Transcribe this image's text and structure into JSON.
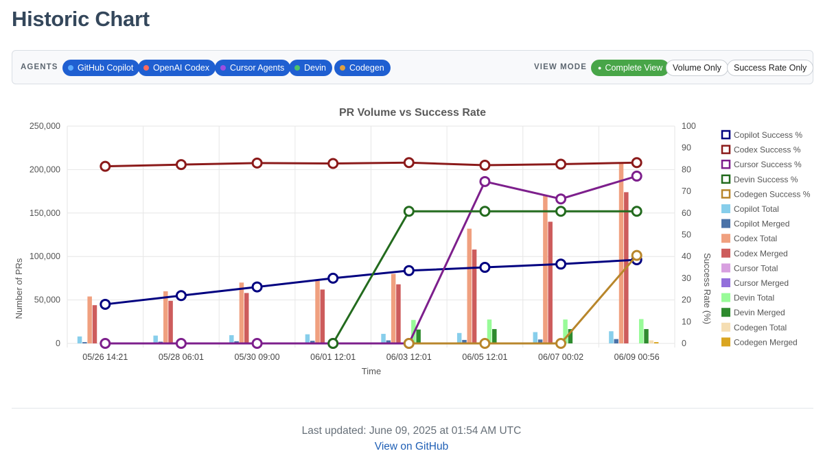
{
  "page": {
    "title": "Historic Chart"
  },
  "controls": {
    "agents_label": "AGENTS",
    "agents": [
      {
        "label": "GitHub Copilot",
        "dot": "#5aa9ff"
      },
      {
        "label": "OpenAI Codex",
        "dot": "#ff6b5e"
      },
      {
        "label": "Cursor Agents",
        "dot": "#9b4ee0"
      },
      {
        "label": "Devin",
        "dot": "#4cc26a"
      },
      {
        "label": "Codegen",
        "dot": "#e0a040"
      }
    ],
    "view_mode_label": "VIEW MODE",
    "modes": [
      {
        "label": "Complete View",
        "active": true
      },
      {
        "label": "Volume Only",
        "active": false
      },
      {
        "label": "Success Rate Only",
        "active": false
      }
    ]
  },
  "chart_data": {
    "type": "bar",
    "title": "PR Volume vs Success Rate",
    "xlabel": "Time",
    "ylabel": "Number of PRs",
    "y2label": "Success Rate (%)",
    "ylim": [
      0,
      250000
    ],
    "y2lim": [
      0,
      100
    ],
    "y_ticks": [
      "0",
      "50,000",
      "100,000",
      "150,000",
      "200,000",
      "250,000"
    ],
    "y2_ticks": [
      "0",
      "10",
      "20",
      "30",
      "40",
      "50",
      "60",
      "70",
      "80",
      "90",
      "100"
    ],
    "categories": [
      "05/26 14:21",
      "05/28 06:01",
      "05/30 09:00",
      "06/01 12:01",
      "06/03 12:01",
      "06/05 12:01",
      "06/07 00:02",
      "06/09 00:56"
    ],
    "bar_series": [
      {
        "name": "Copilot Total",
        "color": "#87ceeb",
        "values": [
          8000,
          9000,
          9500,
          10500,
          11000,
          12000,
          13000,
          14000
        ]
      },
      {
        "name": "Copilot Merged",
        "color": "#4a72a8",
        "values": [
          1500,
          2000,
          2500,
          3000,
          3500,
          4000,
          4500,
          5000
        ]
      },
      {
        "name": "Codex Total",
        "color": "#f0a07f",
        "values": [
          54000,
          60000,
          70000,
          72000,
          80000,
          132000,
          170000,
          207000
        ]
      },
      {
        "name": "Codex Merged",
        "color": "#cd5c5c",
        "values": [
          44000,
          49000,
          58000,
          62000,
          68000,
          108000,
          140000,
          174000
        ]
      },
      {
        "name": "Cursor Total",
        "color": "#d8a0e0",
        "values": [
          0,
          0,
          0,
          0,
          0,
          0,
          0,
          0
        ]
      },
      {
        "name": "Cursor Merged",
        "color": "#9370db",
        "values": [
          0,
          0,
          0,
          0,
          0,
          0,
          0,
          0
        ]
      },
      {
        "name": "Devin Total",
        "color": "#98fb98",
        "values": [
          0,
          0,
          0,
          0,
          27000,
          27500,
          27500,
          28000
        ]
      },
      {
        "name": "Devin Merged",
        "color": "#2e8b2e",
        "values": [
          0,
          0,
          0,
          0,
          16000,
          16500,
          16500,
          16500
        ]
      },
      {
        "name": "Codegen Total",
        "color": "#f5deb3",
        "values": [
          0,
          0,
          0,
          0,
          0,
          0,
          0,
          3500
        ]
      },
      {
        "name": "Codegen Merged",
        "color": "#daa520",
        "values": [
          0,
          0,
          0,
          0,
          0,
          0,
          0,
          1500
        ]
      }
    ],
    "line_series": [
      {
        "name": "Copilot Success %",
        "color": "#000080",
        "values": [
          18,
          22,
          26,
          30,
          33.5,
          35,
          36.5,
          38.5
        ]
      },
      {
        "name": "Codex Success %",
        "color": "#8b1a1a",
        "values": [
          81.5,
          82.3,
          83,
          82.8,
          83.2,
          82,
          82.5,
          83.2
        ]
      },
      {
        "name": "Cursor Success %",
        "color": "#7d1f8c",
        "values": [
          0,
          0,
          0,
          0,
          0,
          74.5,
          66.5,
          77
        ]
      },
      {
        "name": "Devin Success %",
        "color": "#236b1e",
        "values": [
          null,
          null,
          null,
          0,
          60.8,
          60.8,
          60.8,
          60.8
        ]
      },
      {
        "name": "Codegen Success %",
        "color": "#b8862b",
        "values": [
          null,
          null,
          null,
          null,
          0,
          0,
          0,
          40.5
        ]
      }
    ],
    "legend_position": "right"
  },
  "footer": {
    "last_updated": "Last updated: June 09, 2025 at 01:54 AM UTC",
    "link_label": "View on GitHub"
  }
}
